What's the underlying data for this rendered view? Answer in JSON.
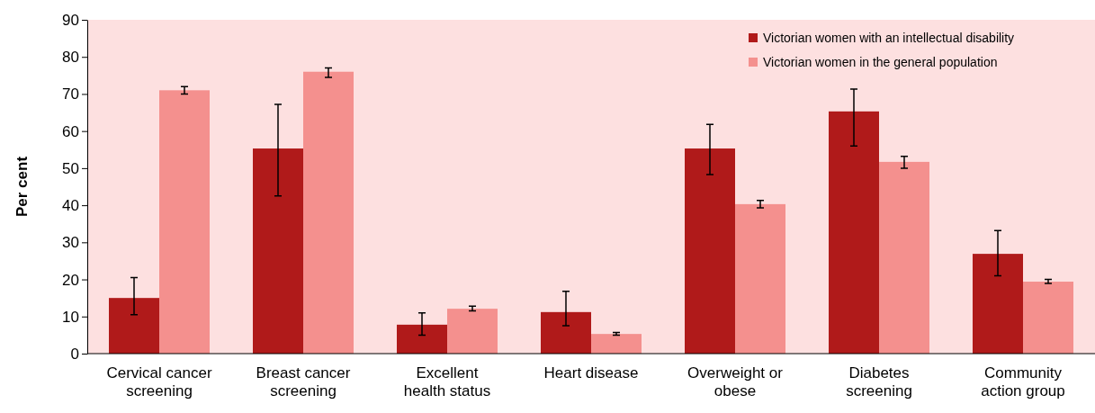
{
  "chart_data": {
    "type": "bar",
    "ylabel": "Per cent",
    "categories": [
      "Cervical cancer screening",
      "Breast cancer screening",
      "Excellent health status",
      "Heart disease",
      "Overweight or obese",
      "Diabetes screening",
      "Community action group"
    ],
    "series": [
      {
        "name": "Victorian women with an intellectual disability",
        "color": "#b01a1a",
        "values": [
          15,
          55.3,
          7.8,
          11.2,
          55.3,
          65.3,
          26.9
        ],
        "errors": [
          [
            10.5,
            20.5
          ],
          [
            42.5,
            67.2
          ],
          [
            5,
            11
          ],
          [
            7.5,
            16.8
          ],
          [
            48.3,
            61.8
          ],
          [
            56,
            71.3
          ],
          [
            21,
            33.2
          ]
        ]
      },
      {
        "name": "Victorian women in the general population",
        "color": "#f4908e",
        "values": [
          71,
          76,
          12.1,
          5.3,
          40.3,
          51.7,
          19.4
        ],
        "errors": [
          [
            70,
            72
          ],
          [
            74.5,
            77
          ],
          [
            11.5,
            12.8
          ],
          [
            5,
            5.7
          ],
          [
            39.3,
            41.3
          ],
          [
            50,
            53.2
          ],
          [
            18.9,
            20
          ]
        ]
      }
    ],
    "ylim": [
      0,
      90
    ],
    "yticks": [
      0,
      10,
      20,
      30,
      40,
      50,
      60,
      70,
      80,
      90
    ],
    "grid": false,
    "legend": "top right"
  }
}
